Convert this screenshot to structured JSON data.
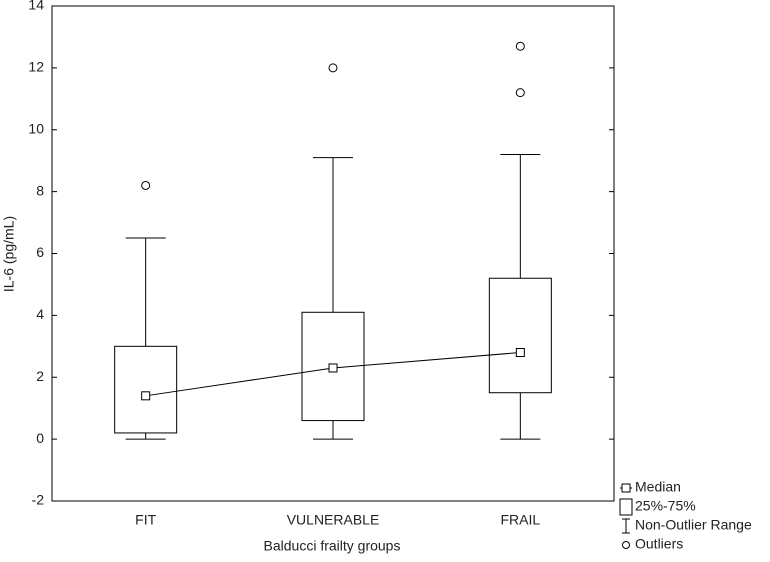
{
  "chart_data": {
    "type": "box",
    "x_label": "Balducci frailty groups",
    "y_label": "IL-6 (pg/mL)",
    "categories": [
      "FIT",
      "VULNERABLE",
      "FRAIL"
    ],
    "boxes": [
      {
        "low": 0,
        "q1": 0.2,
        "median": 1.4,
        "q3": 3,
        "high": 6.5,
        "outliers": [
          8.2
        ]
      },
      {
        "low": 0,
        "q1": 0.6,
        "median": 2.3,
        "q3": 4.1,
        "high": 9.1,
        "outliers": [
          12
        ]
      },
      {
        "low": 0,
        "q1": 1.5,
        "median": 2.8,
        "q3": 5.2,
        "high": 9.2,
        "outliers": [
          11.2,
          12.7
        ]
      }
    ],
    "color": "#000000",
    "ylim": [
      -2,
      14
    ],
    "yticks": [
      -2,
      0,
      2,
      4,
      6,
      8,
      10,
      12,
      14
    ],
    "median_line": true,
    "legend": [
      "Median",
      "25%-75%",
      "Non-Outlier Range",
      "Outliers"
    ],
    "legend_position": "bottom-right"
  }
}
